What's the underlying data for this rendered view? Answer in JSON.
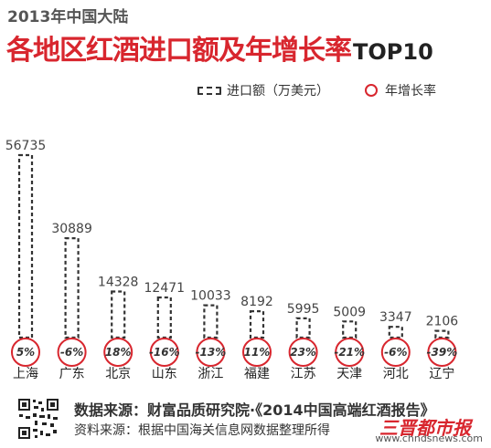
{
  "header": {
    "subtitle": "2013年中国大陆",
    "title": "各地区红酒进口额及年增长率",
    "title_suffix": "TOP10"
  },
  "legend": {
    "bar_label": "进口额（万美元）",
    "rate_label": "年增长率"
  },
  "colors": {
    "accent": "#d8262e",
    "bar_border": "#333333"
  },
  "chart_data": {
    "type": "bar",
    "title": "各地区红酒进口额及年增长率TOP10",
    "categories": [
      "上海",
      "广东",
      "北京",
      "山东",
      "浙江",
      "福建",
      "江苏",
      "天津",
      "河北",
      "辽宁"
    ],
    "series": [
      {
        "name": "进口额（万美元）",
        "values": [
          56735,
          30889,
          14328,
          12471,
          10033,
          8192,
          5995,
          5009,
          3347,
          2106
        ]
      },
      {
        "name": "年增长率",
        "values": [
          5,
          -6,
          18,
          -16,
          -13,
          11,
          23,
          -21,
          -6,
          -39
        ],
        "labels": [
          "5%",
          "-6%",
          "18%",
          "-16%",
          "-13%",
          "11%",
          "23%",
          "-21%",
          "-6%",
          "-39%"
        ]
      }
    ],
    "xlabel": "",
    "ylabel": "",
    "grid": false,
    "legend_position": "top-right"
  },
  "footer": {
    "qr_icon": "qr-code-icon",
    "data_source": "数据来源：财富品质研究院·《2014中国高端红酒报告》",
    "info_source": "资料来源：根据中国海关信息网数据整理所得",
    "brand": "三晋都市报",
    "website": "www.chndsnews.com"
  }
}
